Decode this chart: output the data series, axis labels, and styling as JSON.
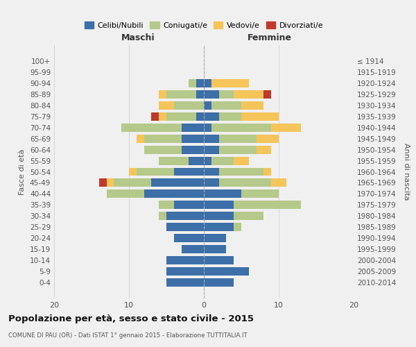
{
  "age_groups": [
    "100+",
    "95-99",
    "90-94",
    "85-89",
    "80-84",
    "75-79",
    "70-74",
    "65-69",
    "60-64",
    "55-59",
    "50-54",
    "45-49",
    "40-44",
    "35-39",
    "30-34",
    "25-29",
    "20-24",
    "15-19",
    "10-14",
    "5-9",
    "0-4"
  ],
  "birth_years": [
    "≤ 1914",
    "1915-1919",
    "1920-1924",
    "1925-1929",
    "1930-1934",
    "1935-1939",
    "1940-1944",
    "1945-1949",
    "1950-1954",
    "1955-1959",
    "1960-1964",
    "1965-1969",
    "1970-1974",
    "1975-1979",
    "1980-1984",
    "1985-1989",
    "1990-1994",
    "1995-1999",
    "2000-2004",
    "2005-2009",
    "2010-2014"
  ],
  "male": {
    "celibi": [
      0,
      0,
      1,
      1,
      0,
      1,
      3,
      3,
      3,
      2,
      4,
      7,
      8,
      4,
      5,
      5,
      4,
      3,
      5,
      5,
      5
    ],
    "coniugati": [
      0,
      0,
      1,
      4,
      4,
      4,
      8,
      5,
      5,
      4,
      5,
      5,
      5,
      2,
      1,
      0,
      0,
      0,
      0,
      0,
      0
    ],
    "vedovi": [
      0,
      0,
      0,
      1,
      2,
      1,
      0,
      1,
      0,
      0,
      1,
      1,
      0,
      0,
      0,
      0,
      0,
      0,
      0,
      0,
      0
    ],
    "divorziati": [
      0,
      0,
      0,
      0,
      0,
      1,
      0,
      0,
      0,
      0,
      0,
      1,
      0,
      0,
      0,
      0,
      0,
      0,
      0,
      0,
      0
    ]
  },
  "female": {
    "nubili": [
      0,
      0,
      1,
      2,
      1,
      2,
      1,
      2,
      2,
      1,
      2,
      2,
      5,
      4,
      4,
      4,
      3,
      3,
      4,
      6,
      4
    ],
    "coniugate": [
      0,
      0,
      0,
      2,
      4,
      3,
      8,
      5,
      5,
      3,
      6,
      7,
      5,
      9,
      4,
      1,
      0,
      0,
      0,
      0,
      0
    ],
    "vedove": [
      0,
      0,
      5,
      4,
      3,
      5,
      4,
      3,
      2,
      2,
      1,
      2,
      0,
      0,
      0,
      0,
      0,
      0,
      0,
      0,
      0
    ],
    "divorziate": [
      0,
      0,
      0,
      1,
      0,
      0,
      0,
      0,
      0,
      0,
      0,
      0,
      0,
      0,
      0,
      0,
      0,
      0,
      0,
      0,
      0
    ]
  },
  "color_celibi": "#3d6fa8",
  "color_coniugati": "#b5c98a",
  "color_vedovi": "#f5c55a",
  "color_divorziati": "#c0392b",
  "title": "Popolazione per età, sesso e stato civile - 2015",
  "subtitle": "COMUNE DI PAU (OR) - Dati ISTAT 1° gennaio 2015 - Elaborazione TUTTITALIA.IT",
  "xlabel_left": "Maschi",
  "xlabel_right": "Femmine",
  "ylabel_left": "Fasce di età",
  "ylabel_right": "Anni di nascita",
  "xlim": 20,
  "bg_color": "#f0f0f0",
  "grid_color": "#cccccc",
  "legend_labels": [
    "Celibi/Nubili",
    "Coniugati/e",
    "Vedovi/e",
    "Divorziati/e"
  ]
}
